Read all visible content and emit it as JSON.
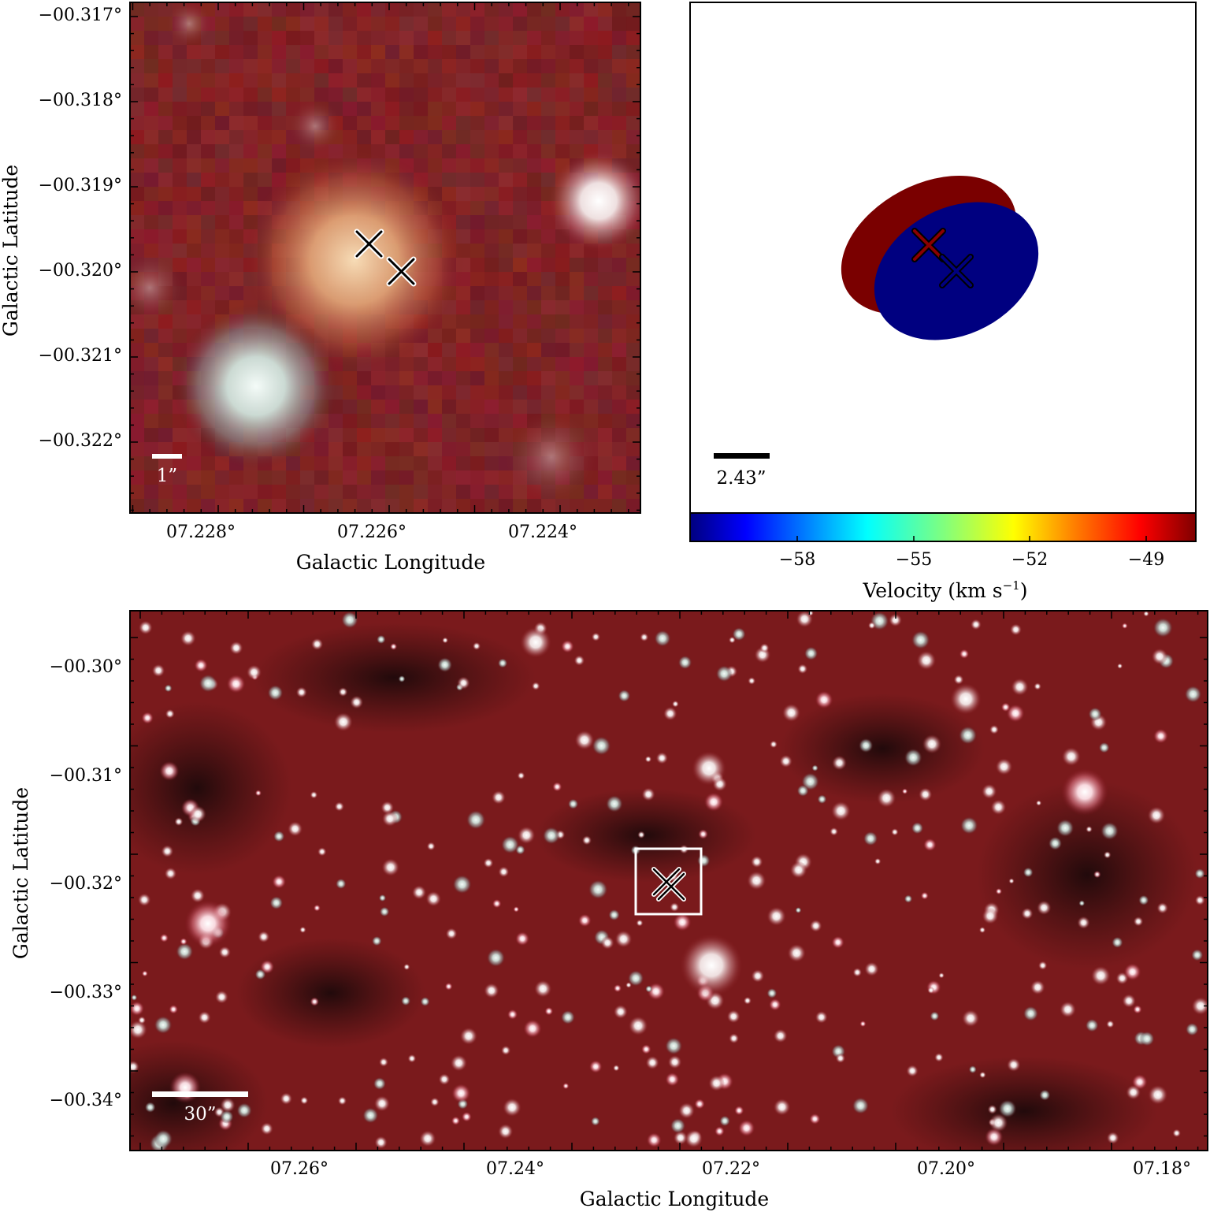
{
  "panels": {
    "zoom": {
      "y_ticks": [
        "−00.317°",
        "−00.318°",
        "−00.319°",
        "−00.320°",
        "−00.321°",
        "−00.322°"
      ],
      "x_ticks": [
        "07.228°",
        "07.226°",
        "07.224°"
      ],
      "x_label": "Galactic Longitude",
      "y_label": "Galactic Latitude",
      "scale_bar": "1”"
    },
    "velocity": {
      "scale_bar": "2.43”",
      "components": [
        {
          "color": "#7a0000"
        },
        {
          "color": "#000080"
        }
      ],
      "colorbar": {
        "ticks": [
          "−58",
          "−55",
          "−52",
          "−49"
        ],
        "label": "Velocity (km s",
        "label_exponent": "−1",
        "label_close": ")",
        "colormap": [
          "#00007f",
          "#0000ff",
          "#007fff",
          "#00ffff",
          "#7fff7f",
          "#ffff00",
          "#ff7f00",
          "#ff0000",
          "#7f0000"
        ]
      }
    },
    "wide": {
      "y_ticks": [
        "−00.30°",
        "−00.31°",
        "−00.32°",
        "−00.33°",
        "−00.34°"
      ],
      "x_ticks": [
        "07.26°",
        "07.24°",
        "07.22°",
        "07.20°",
        "07.18°"
      ],
      "x_label": "Galactic Longitude",
      "y_label": "Galactic Latitude",
      "scale_bar": "30”"
    }
  }
}
